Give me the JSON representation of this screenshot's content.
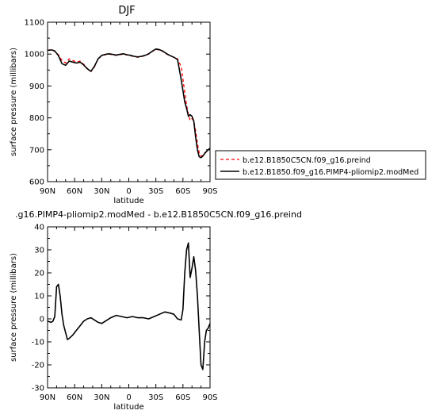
{
  "chart_data": [
    {
      "type": "line",
      "title": "DJF",
      "xlabel": "latitude",
      "ylabel": "surface pressure (millibars)",
      "xlim": [
        90,
        -90
      ],
      "ylim": [
        600,
        1100
      ],
      "x_tick_values": [
        90,
        60,
        30,
        0,
        -30,
        -60,
        -90
      ],
      "x_tick_labels": [
        "90N",
        "60N",
        "30N",
        "0",
        "30S",
        "60S",
        "90S"
      ],
      "y_ticks": [
        600,
        700,
        800,
        900,
        1000,
        1100
      ],
      "legend_placement": "lower-right, outside plot",
      "series": [
        {
          "name": "b.e12.B1850C5CN.f09_g16.preind",
          "color": "#ff0000",
          "dash": "dashed",
          "x": [
            90,
            85,
            82,
            78,
            74,
            70,
            66,
            62,
            58,
            54,
            50,
            46,
            42,
            38,
            34,
            30,
            26,
            22,
            18,
            14,
            10,
            6,
            2,
            -2,
            -6,
            -10,
            -14,
            -18,
            -22,
            -26,
            -30,
            -34,
            -38,
            -42,
            -46,
            -50,
            -54,
            -58,
            -62,
            -64,
            -66,
            -68,
            -70,
            -72,
            -74,
            -76,
            -78,
            -80,
            -82,
            -84,
            -86,
            -88,
            -90
          ],
          "y": [
            1012,
            1015,
            1008,
            998,
            980,
            972,
            985,
            980,
            975,
            978,
            968,
            955,
            945,
            960,
            985,
            995,
            998,
            1000,
            998,
            996,
            998,
            1000,
            997,
            995,
            992,
            990,
            992,
            995,
            1000,
            1008,
            1015,
            1013,
            1008,
            1000,
            994,
            990,
            985,
            960,
            880,
            840,
            810,
            792,
            798,
            790,
            760,
            720,
            690,
            680,
            682,
            690,
            695,
            700,
            705
          ]
        },
        {
          "name": "b.e12.B1850.f09_g16.PIMP4-pliomip2.modMed",
          "color": "#000000",
          "dash": "solid",
          "x": [
            90,
            85,
            82,
            78,
            74,
            70,
            66,
            62,
            58,
            54,
            50,
            46,
            42,
            38,
            34,
            30,
            26,
            22,
            18,
            14,
            10,
            6,
            2,
            -2,
            -6,
            -10,
            -14,
            -18,
            -22,
            -26,
            -30,
            -34,
            -38,
            -42,
            -46,
            -50,
            -54,
            -58,
            -62,
            -64,
            -66,
            -68,
            -70,
            -72,
            -74,
            -76,
            -78,
            -80,
            -82,
            -84,
            -86,
            -88,
            -90
          ],
          "y": [
            1012,
            1013,
            1010,
            995,
            970,
            965,
            978,
            975,
            972,
            975,
            966,
            954,
            946,
            962,
            985,
            996,
            999,
            1001,
            999,
            997,
            999,
            1001,
            998,
            996,
            993,
            991,
            993,
            996,
            1001,
            1009,
            1016,
            1014,
            1009,
            1001,
            995,
            990,
            983,
            920,
            850,
            830,
            805,
            810,
            805,
            790,
            740,
            700,
            678,
            675,
            680,
            688,
            694,
            700,
            705
          ]
        }
      ]
    },
    {
      "type": "line",
      "title": ".g16.PIMP4-pliomip2.modMed - b.e12.B1850C5CN.f09_g16.preind",
      "xlabel": "latitude",
      "ylabel": "surface pressure (millibars)",
      "xlim": [
        90,
        -90
      ],
      "ylim": [
        -30,
        40
      ],
      "x_tick_values": [
        90,
        60,
        30,
        0,
        -30,
        -60,
        -90
      ],
      "x_tick_labels": [
        "90N",
        "60N",
        "30N",
        "0",
        "30S",
        "60S",
        "90S"
      ],
      "y_ticks": [
        -30,
        -20,
        -10,
        0,
        10,
        20,
        30,
        40
      ],
      "series": [
        {
          "color": "#000000",
          "dash": "solid",
          "x": [
            90,
            86,
            84,
            82,
            80,
            78,
            76,
            74,
            72,
            70,
            68,
            66,
            62,
            58,
            54,
            50,
            46,
            42,
            38,
            34,
            30,
            26,
            20,
            14,
            8,
            2,
            -4,
            -10,
            -16,
            -22,
            -28,
            -34,
            -40,
            -46,
            -50,
            -54,
            -58,
            -60,
            -62,
            -64,
            -66,
            -68,
            -70,
            -72,
            -74,
            -76,
            -78,
            -80,
            -82,
            -84,
            -86,
            -88,
            -90
          ],
          "y": [
            -1,
            -1.5,
            -1,
            1,
            14,
            15,
            10,
            2,
            -3,
            -6,
            -9,
            -8.5,
            -7,
            -5,
            -3,
            -1,
            0,
            0.5,
            -0.5,
            -1.5,
            -2,
            -1,
            0.5,
            1.5,
            1,
            0.5,
            1,
            0.5,
            0.5,
            0,
            1,
            2,
            3,
            2.5,
            2,
            0,
            -0.5,
            4,
            20,
            30,
            33,
            18,
            22,
            27,
            21,
            10,
            -5,
            -20,
            -22,
            -10,
            -5,
            -4,
            -2
          ]
        }
      ]
    }
  ]
}
